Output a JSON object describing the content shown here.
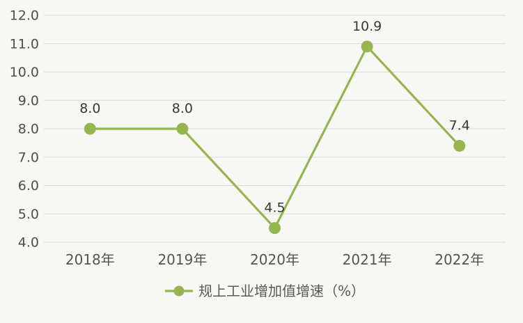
{
  "chart_data": {
    "type": "line",
    "title": "",
    "xlabel": "",
    "ylabel": "",
    "categories": [
      "2018年",
      "2019年",
      "2020年",
      "2021年",
      "2022年"
    ],
    "series": [
      {
        "name": "规上工业增加值增速（%）",
        "values": [
          8.0,
          8.0,
          4.5,
          10.9,
          7.4
        ],
        "point_labels": [
          "8.0",
          "8.0",
          "4.5",
          "10.9",
          "7.4"
        ],
        "color": "#95b64e"
      }
    ],
    "ylim": [
      4.0,
      12.0
    ],
    "y_tick_step": 1.0,
    "y_tick_labels": [
      "12.0",
      "11.0",
      "10.0",
      "9.0",
      "8.0",
      "7.0",
      "6.0",
      "5.0",
      "4.0"
    ],
    "grid": true,
    "legend_position": "bottom",
    "colors": {
      "background": "#f7f7f4",
      "gridline": "#d9d9d9",
      "y_tick_label": "#4d4d4d",
      "category_label": "#545454",
      "data_label": "#383838",
      "legend_label": "#595959"
    }
  }
}
